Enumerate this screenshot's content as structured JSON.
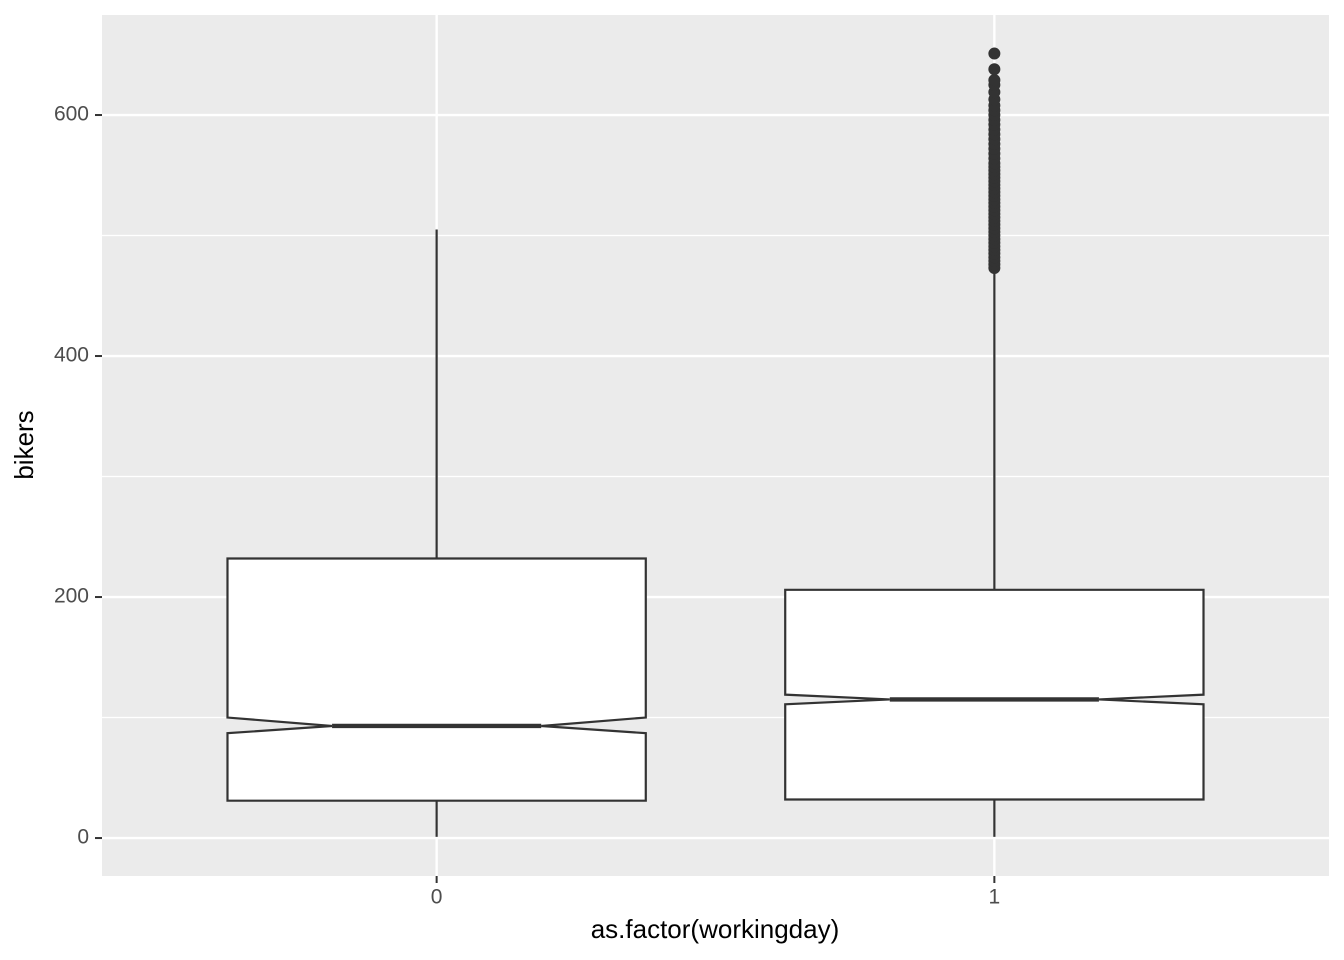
{
  "chart_data": {
    "type": "box",
    "x_label": "as.factor(workingday)",
    "y_label": "bikers",
    "categories": [
      "0",
      "1"
    ],
    "boxes": [
      {
        "whisker_low": 1,
        "q1": 31,
        "notch_low": 87,
        "median": 93,
        "notch_high": 100,
        "q3": 232,
        "whisker_high": 505,
        "outliers": []
      },
      {
        "whisker_low": 1,
        "q1": 32,
        "notch_low": 111,
        "median": 115,
        "notch_high": 119,
        "q3": 206,
        "whisker_high": 470,
        "outliers": [
          473,
          476,
          479,
          482,
          485,
          488,
          491,
          494,
          497,
          500,
          503,
          506,
          509,
          512,
          515,
          518,
          521,
          524,
          527,
          530,
          533,
          536,
          539,
          542,
          545,
          548,
          551,
          554,
          557,
          560,
          564,
          568,
          572,
          576,
          580,
          584,
          588,
          592,
          596,
          600,
          604,
          608,
          613,
          619,
          625,
          629,
          638,
          651
        ]
      }
    ],
    "ylim": [
      -31.5,
      683
    ],
    "yticks": [
      0,
      200,
      400,
      600
    ],
    "yminorticks": [
      100,
      300,
      500
    ],
    "grid": true,
    "box_fill": "#ffffff",
    "box_stroke": "#333333",
    "panel_color": "#ebebeb"
  }
}
